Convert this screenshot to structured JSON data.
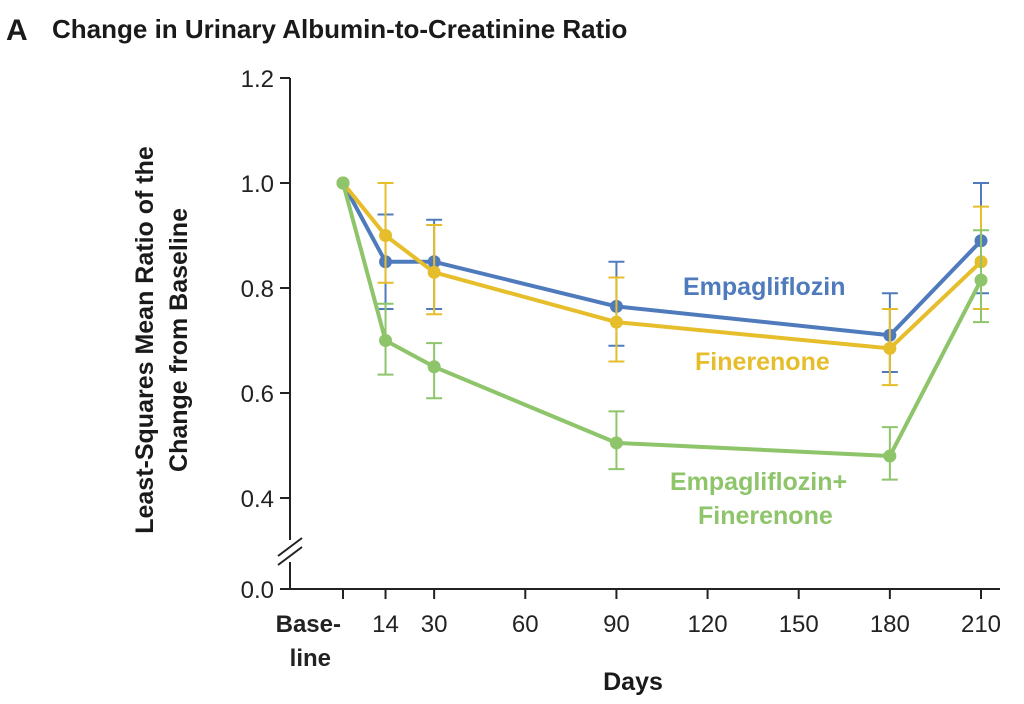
{
  "panel_letter": "A",
  "chart_data": {
    "type": "line",
    "title": "Change in Urinary Albumin-to-Creatinine Ratio",
    "xlabel": "Days",
    "ylabel_lines": [
      "Least-Squares Mean Ratio of the",
      "Change from Baseline"
    ],
    "x_ticks": [
      {
        "value": 0,
        "label": [
          "Base-",
          "line"
        ]
      },
      {
        "value": 14,
        "label": [
          "14"
        ]
      },
      {
        "value": 30,
        "label": [
          "30"
        ]
      },
      {
        "value": 60,
        "label": [
          "60"
        ]
      },
      {
        "value": 90,
        "label": [
          "90"
        ]
      },
      {
        "value": 120,
        "label": [
          "120"
        ]
      },
      {
        "value": 150,
        "label": [
          "150"
        ]
      },
      {
        "value": 180,
        "label": [
          "180"
        ]
      },
      {
        "value": 210,
        "label": [
          "210"
        ]
      }
    ],
    "y_ticks": [
      "1.2",
      "1.0",
      "0.8",
      "0.6",
      "0.4",
      "0.0"
    ],
    "ylim": [
      0.0,
      1.2
    ],
    "y_axis_break": true,
    "grid": false,
    "legend": "inline labels next to lines",
    "series": [
      {
        "name": "Empagliflozin",
        "label_lines": [
          "Empagliflozin"
        ],
        "color": "#4f7bbd",
        "points": [
          {
            "x": 0,
            "y": 1.0,
            "lo": null,
            "hi": null
          },
          {
            "x": 14,
            "y": 0.85,
            "lo": 0.76,
            "hi": 0.94
          },
          {
            "x": 30,
            "y": 0.85,
            "lo": 0.76,
            "hi": 0.93
          },
          {
            "x": 90,
            "y": 0.765,
            "lo": 0.69,
            "hi": 0.85
          },
          {
            "x": 180,
            "y": 0.71,
            "lo": 0.64,
            "hi": 0.79
          },
          {
            "x": 210,
            "y": 0.89,
            "lo": 0.79,
            "hi": 1.0
          }
        ]
      },
      {
        "name": "Finerenone",
        "label_lines": [
          "Finerenone"
        ],
        "color": "#e6bd2a",
        "points": [
          {
            "x": 0,
            "y": 1.0,
            "lo": null,
            "hi": null
          },
          {
            "x": 14,
            "y": 0.9,
            "lo": 0.81,
            "hi": 1.0
          },
          {
            "x": 30,
            "y": 0.83,
            "lo": 0.75,
            "hi": 0.92
          },
          {
            "x": 90,
            "y": 0.735,
            "lo": 0.66,
            "hi": 0.82
          },
          {
            "x": 180,
            "y": 0.685,
            "lo": 0.615,
            "hi": 0.76
          },
          {
            "x": 210,
            "y": 0.85,
            "lo": 0.76,
            "hi": 0.955
          }
        ]
      },
      {
        "name": "Empagliflozin+ Finerenone",
        "label_lines": [
          "Empagliflozin+",
          "Finerenone"
        ],
        "color": "#8ec46a",
        "points": [
          {
            "x": 0,
            "y": 1.0,
            "lo": null,
            "hi": null
          },
          {
            "x": 14,
            "y": 0.7,
            "lo": 0.635,
            "hi": 0.77
          },
          {
            "x": 30,
            "y": 0.65,
            "lo": 0.59,
            "hi": 0.695
          },
          {
            "x": 90,
            "y": 0.505,
            "lo": 0.455,
            "hi": 0.565
          },
          {
            "x": 180,
            "y": 0.48,
            "lo": 0.435,
            "hi": 0.535
          },
          {
            "x": 210,
            "y": 0.815,
            "lo": 0.735,
            "hi": 0.91
          }
        ]
      }
    ]
  }
}
